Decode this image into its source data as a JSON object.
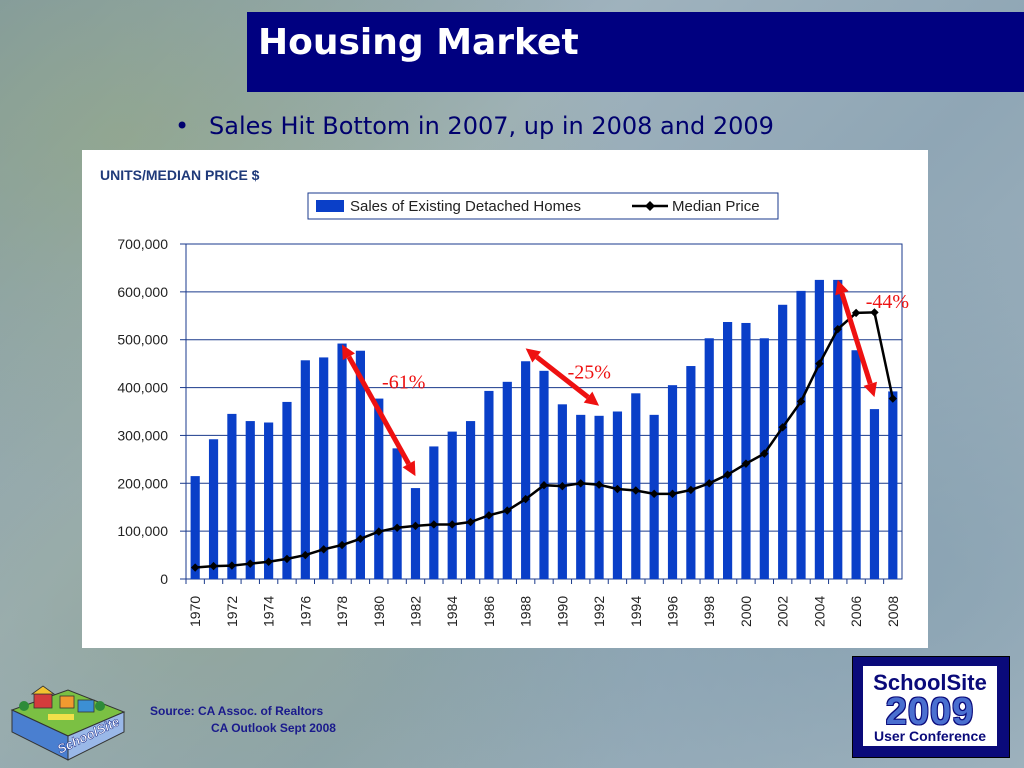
{
  "slide": {
    "title": "Housing Market",
    "bullet": "Sales Hit Bottom in 2007, up in 2008 and 2009",
    "source_line1": "Source:  CA Assoc. of Realtors",
    "source_line2": "CA Outlook Sept 2008",
    "logo_right": {
      "line1": "SchoolSite",
      "line2": "2009",
      "line3": "User Conference"
    },
    "logo_left": {
      "text": "SchoolSite"
    }
  },
  "chart_data": {
    "type": "bar",
    "title": "UNITS/MEDIAN PRICE $",
    "legend_position": "top-right",
    "grid": true,
    "ylim": [
      0,
      700000
    ],
    "yticks": [
      "700,000",
      "600,000",
      "500,000",
      "400,000",
      "300,000",
      "200,000",
      "100,000",
      "0"
    ],
    "ytick_values": [
      700000,
      600000,
      500000,
      400000,
      300000,
      200000,
      100000,
      0
    ],
    "categories": [
      1970,
      1971,
      1972,
      1973,
      1974,
      1975,
      1976,
      1977,
      1978,
      1979,
      1980,
      1981,
      1982,
      1983,
      1984,
      1985,
      1986,
      1987,
      1988,
      1989,
      1990,
      1991,
      1992,
      1993,
      1994,
      1995,
      1996,
      1997,
      1998,
      1999,
      2000,
      2001,
      2002,
      2003,
      2004,
      2005,
      2006,
      2007,
      2008
    ],
    "xtick_labels": [
      "1970",
      "1972",
      "1974",
      "1976",
      "1978",
      "1980",
      "1982",
      "1984",
      "1986",
      "1988",
      "1990",
      "1992",
      "1994",
      "1996",
      "1998",
      "2000",
      "2002",
      "2004",
      "2006",
      "2008"
    ],
    "series": [
      {
        "name": "Sales of Existing Detached Homes",
        "kind": "bar",
        "color": "#0a3fc8",
        "values": [
          215000,
          292000,
          345000,
          330000,
          327000,
          370000,
          457000,
          463000,
          492000,
          477000,
          377000,
          273000,
          190000,
          277000,
          308000,
          330000,
          393000,
          412000,
          455000,
          435000,
          365000,
          343000,
          341000,
          350000,
          388000,
          343000,
          405000,
          445000,
          503000,
          537000,
          535000,
          503000,
          573000,
          602000,
          625000,
          625000,
          478000,
          355000,
          392000
        ]
      },
      {
        "name": "Median Price",
        "kind": "line",
        "color": "#000000",
        "values": [
          24000,
          27000,
          28000,
          32000,
          36000,
          42000,
          50000,
          62000,
          71000,
          84000,
          99000,
          107000,
          111000,
          114000,
          114000,
          119000,
          133000,
          143000,
          167000,
          196000,
          194000,
          200000,
          197000,
          188000,
          185000,
          178000,
          178000,
          186000,
          200000,
          218000,
          241000,
          262000,
          317000,
          371000,
          450000,
          522000,
          556000,
          557000,
          377000
        ]
      }
    ],
    "annotations": [
      {
        "text": "-61%",
        "from_year": 1978,
        "from_value": 490000,
        "to_year": 1982,
        "to_value": 215000
      },
      {
        "text": "-25%",
        "from_year": 1988,
        "from_value": 482000,
        "to_year": 1992,
        "to_value": 362000
      },
      {
        "text": "-44%",
        "from_year": 2005,
        "from_value": 625000,
        "to_year": 2007,
        "to_value": 380000
      }
    ],
    "annotation_color": "#ee1111"
  }
}
